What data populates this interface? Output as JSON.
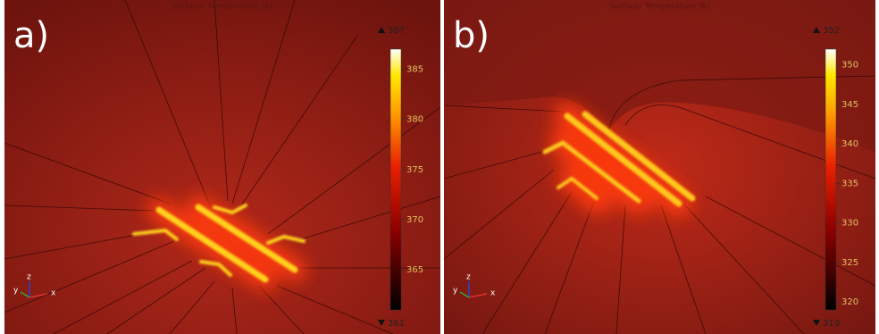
{
  "panels": [
    {
      "label": "a)",
      "title": "Surface: Temperature (K)",
      "colorbar": {
        "min": 361,
        "max": 387,
        "ticks": [
          365,
          370,
          375,
          380,
          385
        ]
      },
      "triad": {
        "x": "x",
        "y": "y",
        "z": "z"
      }
    },
    {
      "label": "b)",
      "title": "Surface: Temperature (K)",
      "colorbar": {
        "min": 319,
        "max": 352,
        "ticks": [
          320,
          325,
          330,
          335,
          340,
          345,
          350
        ]
      },
      "triad": {
        "x": "x",
        "y": "y",
        "z": "z"
      }
    }
  ]
}
